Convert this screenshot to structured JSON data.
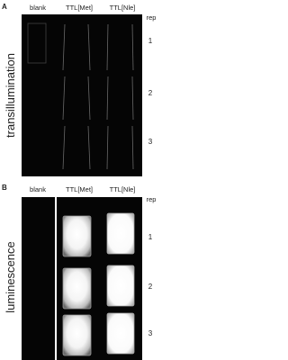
{
  "panels": [
    {
      "label": "A",
      "columns": [
        "blank",
        "TTL[Met]",
        "TTL[Nle]"
      ],
      "row_header": "rep",
      "rows": [
        "1",
        "2",
        "3"
      ],
      "side_label": "transillumination"
    },
    {
      "label": "B",
      "columns": [
        "blank",
        "TTL[Met]",
        "TTL[Nle]"
      ],
      "row_header": "rep",
      "rows": [
        "1",
        "2",
        "3"
      ],
      "side_label": "luminescence"
    }
  ]
}
